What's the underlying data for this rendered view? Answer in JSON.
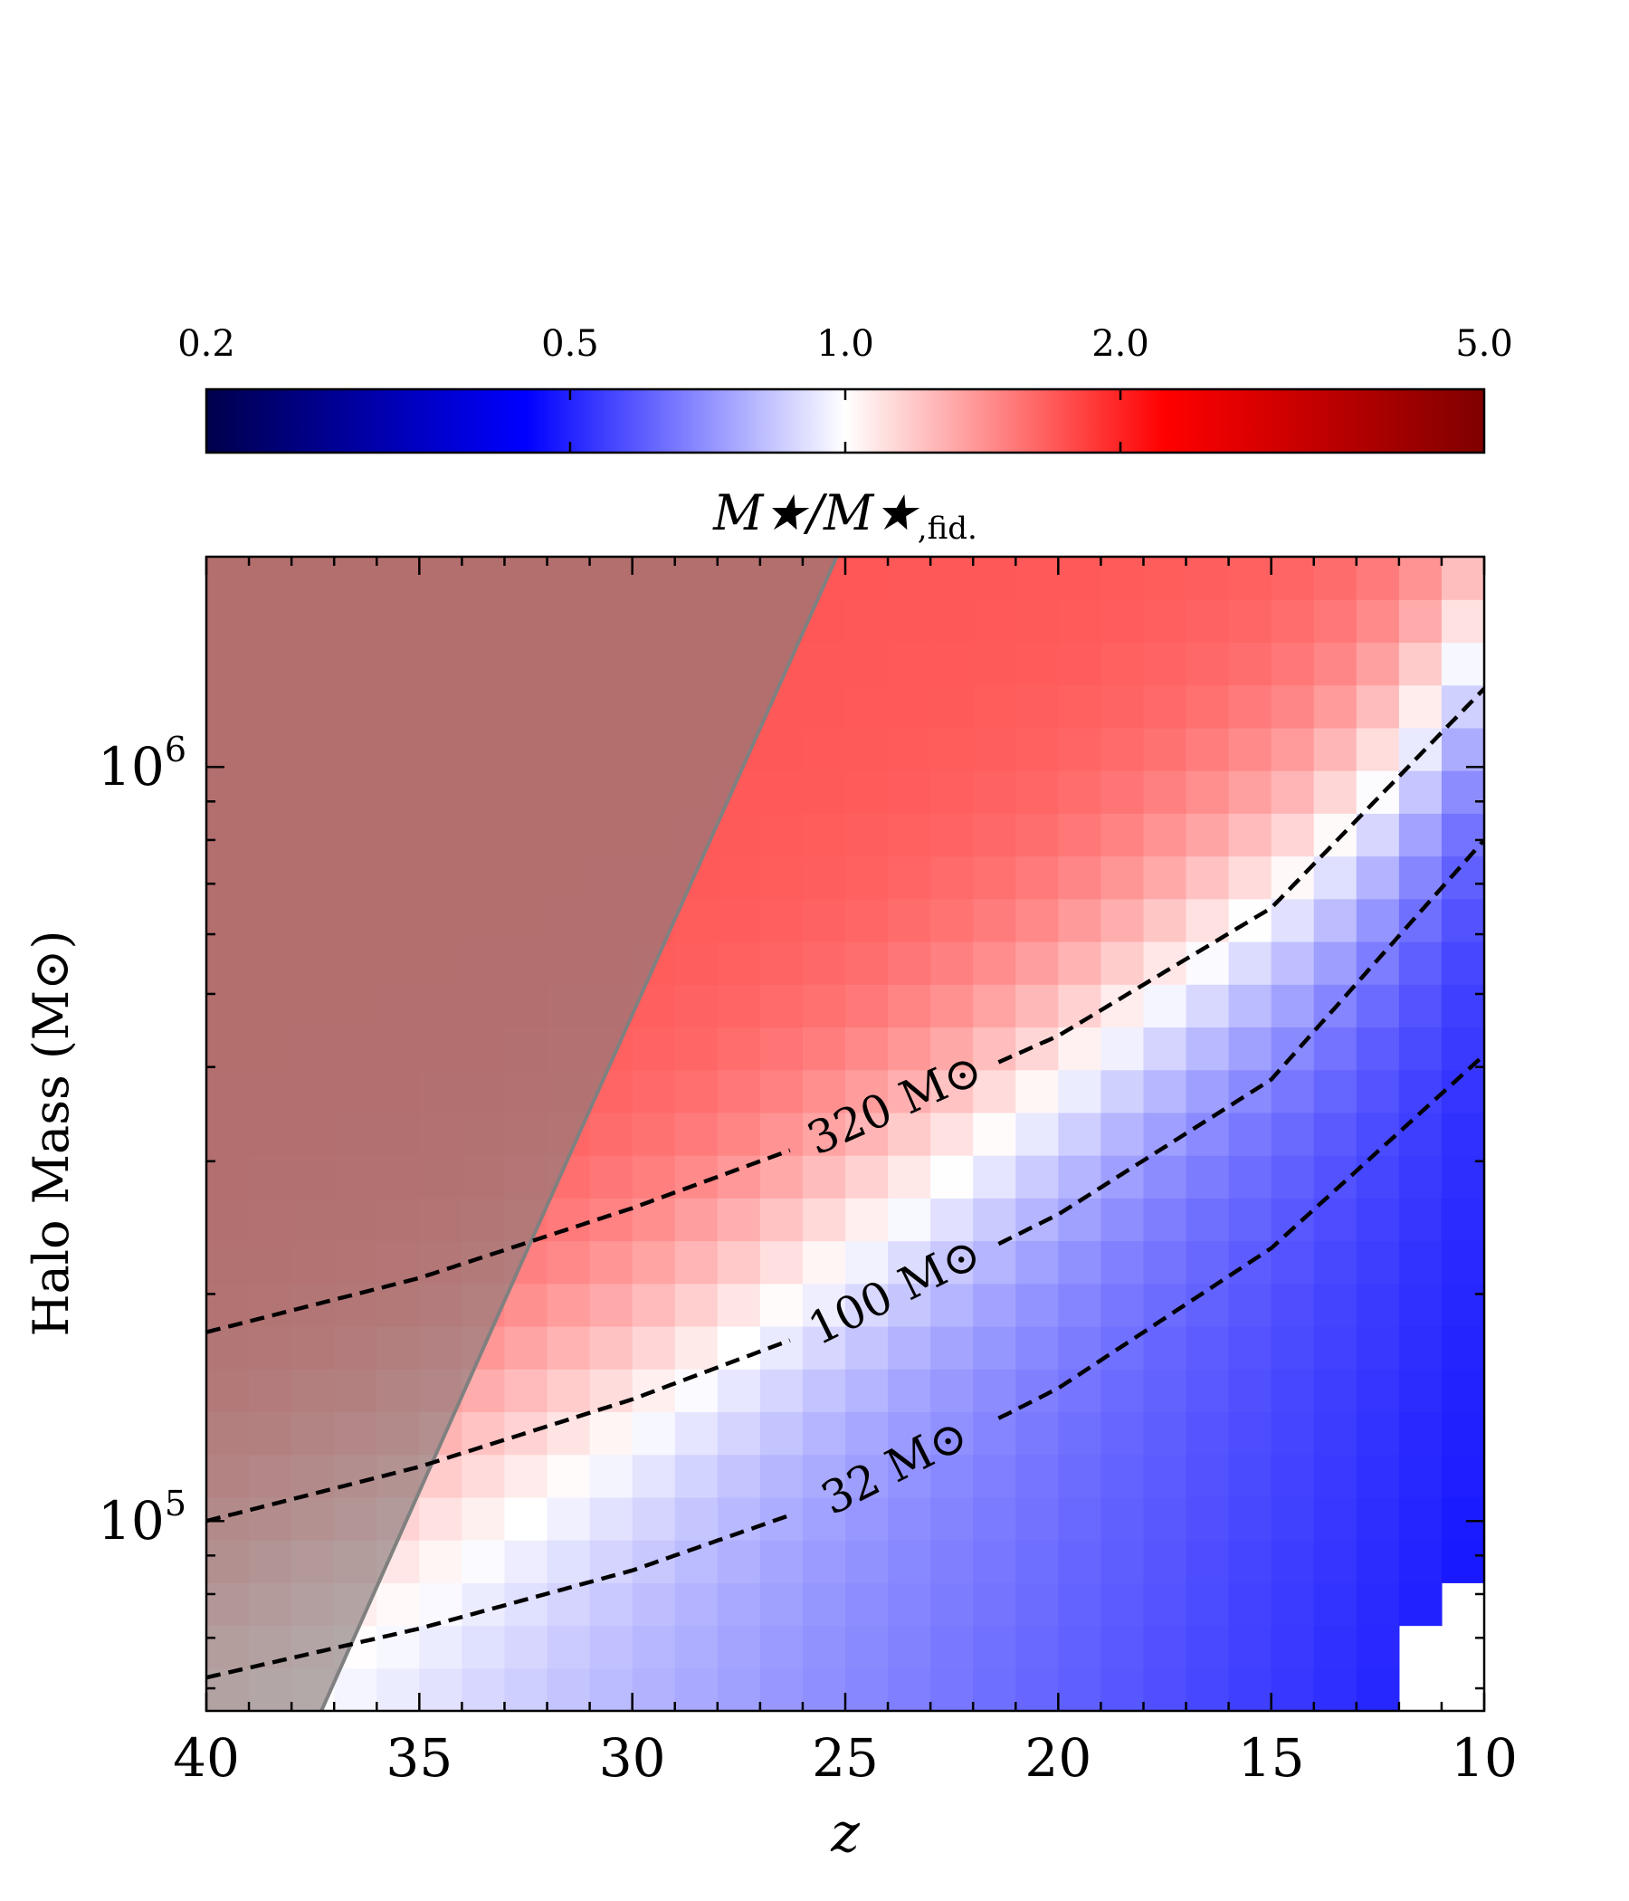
{
  "chart_data": {
    "type": "heatmap",
    "title": "",
    "xlabel": "z",
    "ylabel": "Halo Mass (M⊙)",
    "x_axis": {
      "range": [
        40,
        10
      ],
      "inverted": true,
      "ticks": [
        40,
        35,
        30,
        25,
        20,
        15,
        10
      ],
      "tick_labels": [
        "40",
        "35",
        "30",
        "25",
        "20",
        "15",
        "10"
      ]
    },
    "y_axis": {
      "scale": "log",
      "range": [
        56000,
        1900000
      ],
      "ticks": [
        100000,
        1000000
      ],
      "tick_labels": [
        {
          "base": "10",
          "exp": "5"
        },
        {
          "base": "10",
          "exp": "6"
        }
      ]
    },
    "colorbar": {
      "label_main": "M★/M★",
      "label_sub": ",fid.",
      "scale": "log",
      "range": [
        0.2,
        5.0
      ],
      "ticks": [
        0.2,
        0.5,
        1.0,
        2.0,
        5.0
      ],
      "tick_labels": [
        "0.2",
        "0.5",
        "1.0",
        "2.0",
        "5.0"
      ],
      "colormap": "seismic",
      "placement": "top"
    },
    "heatmap": {
      "description_values": "ratio of stellar mass to fiducial stellar mass per (z, halo mass) bin",
      "z_bins": [
        40,
        39,
        38,
        37,
        36,
        35,
        34,
        33,
        32,
        31,
        30,
        29,
        28,
        27,
        26,
        25,
        24,
        23,
        22,
        21,
        20,
        19,
        18,
        17,
        16,
        15,
        14,
        13,
        12,
        11,
        10
      ],
      "transition_curve_logM": [
        [
          40,
          4.97
        ],
        [
          35,
          5.08
        ],
        [
          30,
          5.23
        ],
        [
          26,
          5.38
        ],
        [
          22,
          5.53
        ],
        [
          18,
          5.7
        ],
        [
          14,
          5.87
        ],
        [
          12,
          6.0
        ],
        [
          10,
          6.18
        ]
      ],
      "high_ratio": 1.7,
      "low_ratio_at_z10": 0.55,
      "empty_region": "white corner at z<14, M<7e4"
    },
    "shaded_region": {
      "color": "#8b7b7b",
      "boundary": [
        [
          37.3,
          56000
        ],
        [
          25.2,
          1900000
        ]
      ],
      "edge_color": "#808080"
    },
    "contours": [
      {
        "label": "320 M⊙",
        "mstar": 320,
        "points": [
          [
            40,
            178000
          ],
          [
            35,
            210000
          ],
          [
            30,
            260000
          ],
          [
            25,
            330000
          ],
          [
            20,
            440000
          ],
          [
            15,
            650000
          ],
          [
            10,
            1270000
          ]
        ]
      },
      {
        "label": "100 M⊙",
        "mstar": 100,
        "points": [
          [
            40,
            100000
          ],
          [
            35,
            118000
          ],
          [
            30,
            145000
          ],
          [
            25,
            185000
          ],
          [
            20,
            255000
          ],
          [
            15,
            385000
          ],
          [
            10,
            800000
          ]
        ]
      },
      {
        "label": "32 M⊙",
        "mstar": 32,
        "points": [
          [
            40,
            62000
          ],
          [
            35,
            72000
          ],
          [
            30,
            86000
          ],
          [
            25,
            108000
          ],
          [
            20,
            150000
          ],
          [
            15,
            230000
          ],
          [
            10,
            415000
          ]
        ]
      }
    ]
  }
}
